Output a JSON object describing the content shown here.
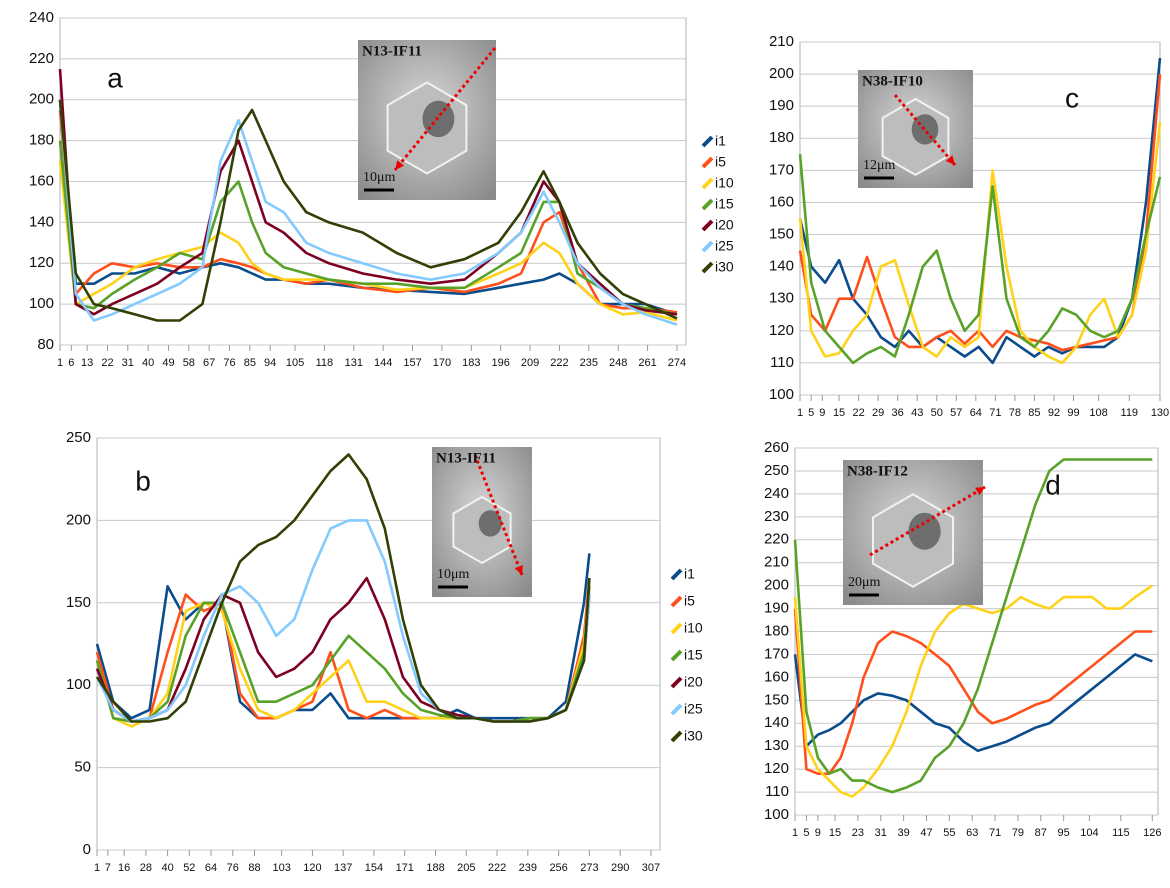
{
  "chart_data": [
    {
      "type": "line",
      "label": "a",
      "inset_label": "N13-IF11",
      "scale_label": "10μm",
      "x": [
        1,
        8,
        16,
        24,
        34,
        44,
        54,
        64,
        72,
        80,
        86,
        92,
        100,
        110,
        120,
        135,
        150,
        165,
        180,
        195,
        205,
        215,
        222,
        230,
        240,
        250,
        260,
        274
      ],
      "xlim": [
        1,
        278
      ],
      "xticks": [
        1,
        6,
        13,
        22,
        31,
        40,
        49,
        58,
        67,
        76,
        85,
        94,
        105,
        118,
        131,
        144,
        157,
        170,
        183,
        196,
        209,
        222,
        235,
        248,
        261,
        274
      ],
      "ylim": [
        80,
        240
      ],
      "yticks": [
        80,
        100,
        120,
        140,
        160,
        180,
        200,
        220,
        240
      ],
      "grid": true,
      "series": [
        {
          "name": "i1",
          "color": "#0b4c8c",
          "values": [
            200,
            110,
            110,
            115,
            115,
            118,
            115,
            118,
            120,
            118,
            115,
            112,
            112,
            110,
            110,
            108,
            107,
            106,
            105,
            108,
            110,
            112,
            115,
            110,
            100,
            100,
            100,
            95
          ]
        },
        {
          "name": "i5",
          "color": "#ff4f1c",
          "values": [
            195,
            105,
            115,
            120,
            118,
            120,
            118,
            118,
            122,
            120,
            118,
            115,
            112,
            110,
            112,
            108,
            106,
            108,
            106,
            110,
            115,
            140,
            145,
            120,
            100,
            98,
            98,
            96
          ]
        },
        {
          "name": "i10",
          "color": "#ffd21a",
          "values": [
            170,
            100,
            105,
            110,
            118,
            122,
            125,
            128,
            135,
            130,
            120,
            115,
            112,
            112,
            112,
            110,
            107,
            108,
            108,
            115,
            120,
            130,
            125,
            110,
            100,
            95,
            96,
            92
          ]
        },
        {
          "name": "i15",
          "color": "#58a229",
          "values": [
            180,
            100,
            98,
            105,
            112,
            118,
            125,
            122,
            150,
            160,
            140,
            125,
            118,
            115,
            112,
            110,
            110,
            108,
            108,
            118,
            125,
            150,
            150,
            115,
            108,
            100,
            98,
            95
          ]
        },
        {
          "name": "i20",
          "color": "#7e0021",
          "values": [
            215,
            100,
            95,
            100,
            105,
            110,
            118,
            125,
            165,
            180,
            160,
            140,
            135,
            125,
            120,
            115,
            112,
            110,
            112,
            125,
            135,
            160,
            150,
            120,
            110,
            100,
            97,
            95
          ]
        },
        {
          "name": "i25",
          "color": "#83caff",
          "values": [
            200,
            105,
            92,
            95,
            100,
            105,
            110,
            118,
            170,
            190,
            170,
            150,
            145,
            130,
            125,
            120,
            115,
            112,
            115,
            125,
            135,
            155,
            140,
            120,
            108,
            100,
            95,
            90
          ]
        },
        {
          "name": "i30",
          "color": "#314004",
          "values": [
            200,
            115,
            100,
            98,
            95,
            92,
            92,
            100,
            140,
            185,
            195,
            180,
            160,
            145,
            140,
            135,
            125,
            118,
            122,
            130,
            145,
            165,
            150,
            130,
            115,
            105,
            100,
            93
          ]
        }
      ]
    },
    {
      "type": "line",
      "label": "b",
      "inset_label": "N13-IF11",
      "scale_label": "10μm",
      "x": [
        1,
        10,
        20,
        30,
        40,
        50,
        60,
        70,
        80,
        90,
        100,
        110,
        120,
        130,
        140,
        150,
        160,
        170,
        180,
        190,
        200,
        210,
        220,
        230,
        240,
        250,
        260,
        270,
        273
      ],
      "xlim": [
        1,
        312
      ],
      "xticks": [
        1,
        7,
        16,
        28,
        40,
        52,
        64,
        76,
        88,
        103,
        120,
        137,
        154,
        171,
        188,
        205,
        222,
        239,
        256,
        273,
        290,
        307
      ],
      "ylim": [
        0,
        250
      ],
      "yticks": [
        0,
        50,
        100,
        150,
        200,
        250
      ],
      "grid": true,
      "series": [
        {
          "name": "i1",
          "color": "#0b4c8c",
          "values": [
            125,
            90,
            80,
            85,
            160,
            140,
            150,
            150,
            90,
            80,
            80,
            85,
            85,
            95,
            80,
            80,
            80,
            80,
            80,
            80,
            85,
            80,
            80,
            80,
            80,
            80,
            90,
            150,
            180
          ]
        },
        {
          "name": "i5",
          "color": "#ff4f1c",
          "values": [
            120,
            85,
            78,
            80,
            120,
            155,
            145,
            150,
            95,
            80,
            80,
            85,
            90,
            120,
            85,
            80,
            85,
            80,
            80,
            80,
            80,
            80,
            78,
            78,
            80,
            80,
            85,
            130,
            165
          ]
        },
        {
          "name": "i10",
          "color": "#ffd21a",
          "values": [
            115,
            80,
            75,
            80,
            95,
            145,
            150,
            145,
            110,
            85,
            80,
            85,
            95,
            105,
            115,
            90,
            90,
            85,
            80,
            80,
            80,
            80,
            78,
            78,
            80,
            80,
            85,
            125,
            160
          ]
        },
        {
          "name": "i15",
          "color": "#58a229",
          "values": [
            115,
            80,
            78,
            80,
            90,
            130,
            150,
            150,
            120,
            90,
            90,
            95,
            100,
            115,
            130,
            120,
            110,
            95,
            85,
            82,
            80,
            80,
            78,
            78,
            80,
            80,
            85,
            120,
            160
          ]
        },
        {
          "name": "i20",
          "color": "#7e0021",
          "values": [
            110,
            85,
            78,
            80,
            85,
            110,
            140,
            155,
            150,
            120,
            105,
            110,
            120,
            140,
            150,
            165,
            140,
            105,
            90,
            85,
            82,
            80,
            78,
            78,
            78,
            80,
            85,
            115,
            155
          ]
        },
        {
          "name": "i25",
          "color": "#83caff",
          "values": [
            105,
            85,
            78,
            80,
            85,
            100,
            130,
            155,
            160,
            150,
            130,
            140,
            170,
            195,
            200,
            200,
            175,
            130,
            95,
            85,
            80,
            80,
            78,
            78,
            78,
            80,
            85,
            115,
            155
          ]
        },
        {
          "name": "i30",
          "color": "#314004",
          "values": [
            105,
            90,
            78,
            78,
            80,
            90,
            120,
            150,
            175,
            185,
            190,
            200,
            215,
            230,
            240,
            225,
            195,
            140,
            100,
            85,
            80,
            80,
            78,
            78,
            78,
            80,
            85,
            115,
            165
          ]
        }
      ]
    },
    {
      "type": "line",
      "label": "c",
      "inset_label": "N38-IF10",
      "scale_label": "12μm",
      "x": [
        1,
        5,
        10,
        15,
        20,
        25,
        30,
        35,
        40,
        45,
        50,
        55,
        60,
        65,
        70,
        75,
        80,
        85,
        90,
        95,
        100,
        105,
        110,
        115,
        120,
        125,
        130
      ],
      "xlim": [
        1,
        130
      ],
      "xticks": [
        1,
        5,
        9,
        15,
        22,
        29,
        36,
        43,
        50,
        57,
        64,
        71,
        78,
        85,
        92,
        99,
        108,
        119,
        130
      ],
      "ylim": [
        100,
        210
      ],
      "yticks": [
        100,
        110,
        120,
        130,
        140,
        150,
        160,
        170,
        180,
        190,
        200,
        210
      ],
      "grid": true,
      "series": [
        {
          "color": "#0b4c8c",
          "values": [
            155,
            140,
            135,
            142,
            130,
            125,
            118,
            115,
            120,
            115,
            118,
            115,
            112,
            115,
            110,
            118,
            115,
            112,
            115,
            113,
            115,
            115,
            115,
            118,
            130,
            160,
            205
          ]
        },
        {
          "color": "#ff4f1c",
          "values": [
            145,
            125,
            120,
            130,
            130,
            143,
            130,
            118,
            115,
            115,
            118,
            120,
            116,
            120,
            115,
            120,
            118,
            117,
            116,
            114,
            115,
            116,
            117,
            118,
            125,
            150,
            200
          ]
        },
        {
          "color": "#ffd21a",
          "values": [
            155,
            120,
            112,
            113,
            120,
            125,
            140,
            142,
            128,
            115,
            112,
            118,
            115,
            118,
            170,
            140,
            120,
            115,
            112,
            110,
            115,
            125,
            130,
            118,
            125,
            145,
            185
          ]
        },
        {
          "color": "#58a229",
          "values": [
            175,
            135,
            120,
            115,
            110,
            113,
            115,
            112,
            125,
            140,
            145,
            130,
            120,
            125,
            165,
            130,
            118,
            115,
            120,
            127,
            125,
            120,
            118,
            120,
            130,
            150,
            168
          ]
        }
      ]
    },
    {
      "type": "line",
      "label": "d",
      "inset_label": "N38-IF12",
      "scale_label": "20μm",
      "x": [
        1,
        5,
        9,
        13,
        17,
        21,
        25,
        30,
        35,
        40,
        45,
        50,
        55,
        60,
        65,
        70,
        75,
        80,
        85,
        90,
        95,
        100,
        105,
        110,
        115,
        120,
        126
      ],
      "xlim": [
        1,
        128
      ],
      "xticks": [
        1,
        5,
        9,
        15,
        23,
        31,
        39,
        47,
        55,
        63,
        71,
        79,
        87,
        95,
        104,
        115,
        126
      ],
      "ylim": [
        100,
        260
      ],
      "yticks": [
        100,
        110,
        120,
        130,
        140,
        150,
        160,
        170,
        180,
        190,
        200,
        210,
        220,
        230,
        240,
        250,
        260
      ],
      "grid": true,
      "series": [
        {
          "color": "#0b4c8c",
          "values": [
            170,
            130,
            135,
            137,
            140,
            145,
            150,
            153,
            152,
            150,
            145,
            140,
            138,
            132,
            128,
            130,
            132,
            135,
            138,
            140,
            145,
            150,
            155,
            160,
            165,
            170,
            167
          ]
        },
        {
          "color": "#ff4f1c",
          "values": [
            190,
            120,
            118,
            118,
            125,
            140,
            160,
            175,
            180,
            178,
            175,
            170,
            165,
            155,
            145,
            140,
            142,
            145,
            148,
            150,
            155,
            160,
            165,
            170,
            175,
            180,
            180
          ]
        },
        {
          "color": "#ffd21a",
          "values": [
            195,
            130,
            120,
            115,
            110,
            108,
            112,
            120,
            130,
            145,
            165,
            180,
            188,
            192,
            190,
            188,
            190,
            195,
            192,
            190,
            195,
            195,
            195,
            190,
            190,
            195,
            200
          ]
        },
        {
          "color": "#58a229",
          "values": [
            220,
            145,
            125,
            118,
            120,
            115,
            115,
            112,
            110,
            112,
            115,
            125,
            130,
            140,
            155,
            175,
            195,
            215,
            235,
            250,
            255,
            255,
            255,
            255,
            255,
            255,
            255
          ]
        }
      ]
    }
  ]
}
